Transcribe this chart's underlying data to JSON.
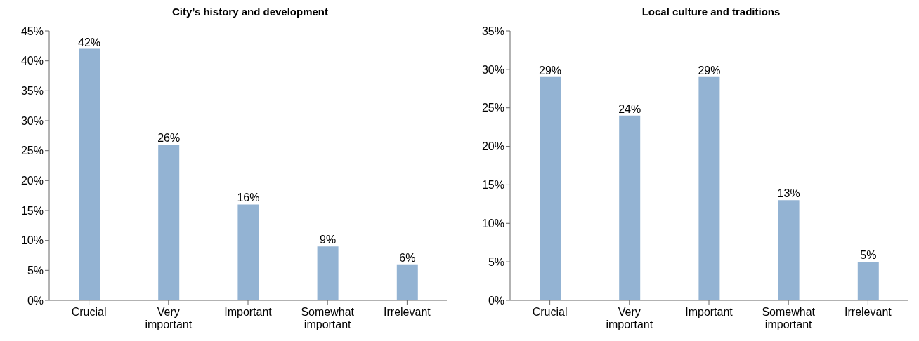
{
  "chart_data": [
    {
      "type": "bar",
      "title": "City’s history and development",
      "categories": [
        "Crucial",
        "Very important",
        "Important",
        "Somewhat important",
        "Irrelevant"
      ],
      "values": [
        42,
        26,
        16,
        9,
        6
      ],
      "color": "#93b3d3",
      "value_labels": [
        "42%",
        "26%",
        "16%",
        "9%",
        "6%"
      ],
      "ylim": [
        0,
        45
      ],
      "yticks": [
        {
          "value": 0,
          "label": "0%"
        },
        {
          "value": 5,
          "label": "5%"
        },
        {
          "value": 10,
          "label": "10%"
        },
        {
          "value": 15,
          "label": "15%"
        },
        {
          "value": 20,
          "label": "20%"
        },
        {
          "value": 25,
          "label": "25%"
        },
        {
          "value": 30,
          "label": "30%"
        },
        {
          "value": 35,
          "label": "35%"
        },
        {
          "value": 40,
          "label": "40%"
        },
        {
          "value": 45,
          "label": "45%"
        }
      ]
    },
    {
      "type": "bar",
      "title": "Local culture and traditions",
      "categories": [
        "Crucial",
        "Very important",
        "Important",
        "Somewhat important",
        "Irrelevant"
      ],
      "values": [
        29,
        24,
        29,
        13,
        5
      ],
      "color": "#93b3d3",
      "value_labels": [
        "29%",
        "24%",
        "29%",
        "13%",
        "5%"
      ],
      "ylim": [
        0,
        35
      ],
      "yticks": [
        {
          "value": 0,
          "label": "0%"
        },
        {
          "value": 5,
          "label": "5%"
        },
        {
          "value": 10,
          "label": "10%"
        },
        {
          "value": 15,
          "label": "15%"
        },
        {
          "value": 20,
          "label": "20%"
        },
        {
          "value": 25,
          "label": "25%"
        },
        {
          "value": 30,
          "label": "30%"
        },
        {
          "value": 35,
          "label": "35%"
        }
      ]
    }
  ]
}
